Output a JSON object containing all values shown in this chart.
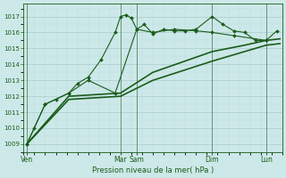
{
  "background_color": "#cce8e8",
  "grid_color_major": "#aacccc",
  "grid_color_minor": "#bbdddd",
  "line_color": "#1a5c1a",
  "xlabel_text": "Pression niveau de la mer( hPa )",
  "ylim": [
    1008.5,
    1017.8
  ],
  "yticks": [
    1009,
    1010,
    1011,
    1012,
    1013,
    1014,
    1015,
    1016,
    1017
  ],
  "xlim": [
    0,
    24
  ],
  "day_labels": [
    "Ven",
    "Mar",
    "Sam",
    "Dim",
    "Lun"
  ],
  "day_positions": [
    0.3,
    9.0,
    10.5,
    17.5,
    22.5
  ],
  "vline_positions": [
    0.3,
    9.0,
    10.5,
    17.5,
    22.5
  ],
  "series": [
    {
      "x": [
        0.3,
        1.0,
        2.0,
        3.0,
        4.2,
        5.0,
        6.0,
        7.2,
        8.5,
        9.0,
        9.5,
        10.0,
        10.5,
        11.2,
        12.0,
        13.0,
        14.0,
        15.0,
        16.0,
        17.5,
        18.5,
        19.5,
        20.5,
        21.5,
        22.5,
        23.5
      ],
      "y": [
        1009.0,
        1010.0,
        1011.5,
        1011.8,
        1012.2,
        1012.8,
        1013.2,
        1014.3,
        1016.0,
        1017.0,
        1017.1,
        1016.9,
        1016.2,
        1016.5,
        1015.9,
        1016.2,
        1016.1,
        1016.1,
        1016.2,
        1017.0,
        1016.5,
        1016.1,
        1016.0,
        1015.5,
        1015.5,
        1016.1
      ],
      "marker": "D",
      "markersize": 2.0,
      "linewidth": 0.8
    },
    {
      "x": [
        0.3,
        2.0,
        4.2,
        6.0,
        8.5,
        10.5,
        12.0,
        14.0,
        16.0,
        17.5,
        19.5,
        22.5
      ],
      "y": [
        1009.0,
        1011.5,
        1012.2,
        1013.0,
        1012.2,
        1016.2,
        1016.0,
        1016.2,
        1016.1,
        1016.0,
        1015.8,
        1015.5
      ],
      "marker": "D",
      "markersize": 2.0,
      "linewidth": 0.8
    },
    {
      "x": [
        0.3,
        4.2,
        9.0,
        12.0,
        17.5,
        20.5,
        22.5,
        23.8
      ],
      "y": [
        1009.0,
        1011.8,
        1012.0,
        1013.0,
        1014.2,
        1014.8,
        1015.2,
        1015.3
      ],
      "marker": null,
      "markersize": 0,
      "linewidth": 1.2
    },
    {
      "x": [
        0.3,
        4.2,
        9.0,
        12.0,
        17.5,
        20.5,
        22.5,
        23.8
      ],
      "y": [
        1009.0,
        1012.0,
        1012.2,
        1013.5,
        1014.8,
        1015.2,
        1015.5,
        1015.6
      ],
      "marker": null,
      "markersize": 0,
      "linewidth": 1.2
    }
  ]
}
